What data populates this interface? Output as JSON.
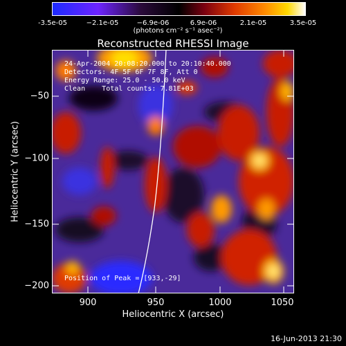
{
  "colorbar": {
    "ticks": [
      "-3.5e-05",
      "−2.1e-05",
      "−6.9e-06",
      "6.9e-06",
      "2.1e-05",
      "3.5e-05"
    ],
    "units": "(photons cm⁻² s⁻¹ asec⁻²)"
  },
  "title": "Reconstructed RHESSI Image",
  "info": {
    "line1": "24-Apr-2004 20:08:20.000 to 20:10:40.000",
    "line2": "Detectors: 4F 5F 6F 7F 8F, Att 0",
    "line3": "Energy Range: 25.0 - 50.0 keV",
    "line4": "Clean    Total counts: 7.81E+03",
    "peak": "Position of Peak = [933,-29]"
  },
  "axes": {
    "xlabel": "Heliocentric X (arcsec)",
    "ylabel": "Heliocentric Y (arcsec)",
    "xticks": [
      "900",
      "950",
      "1000",
      "1050"
    ],
    "yticks": [
      "−50",
      "−100",
      "−150",
      "−200"
    ]
  },
  "datestamp": "16-Jun-2013 21:30",
  "colors": {
    "frame": "#ffffff",
    "limb": "#ffffff"
  }
}
